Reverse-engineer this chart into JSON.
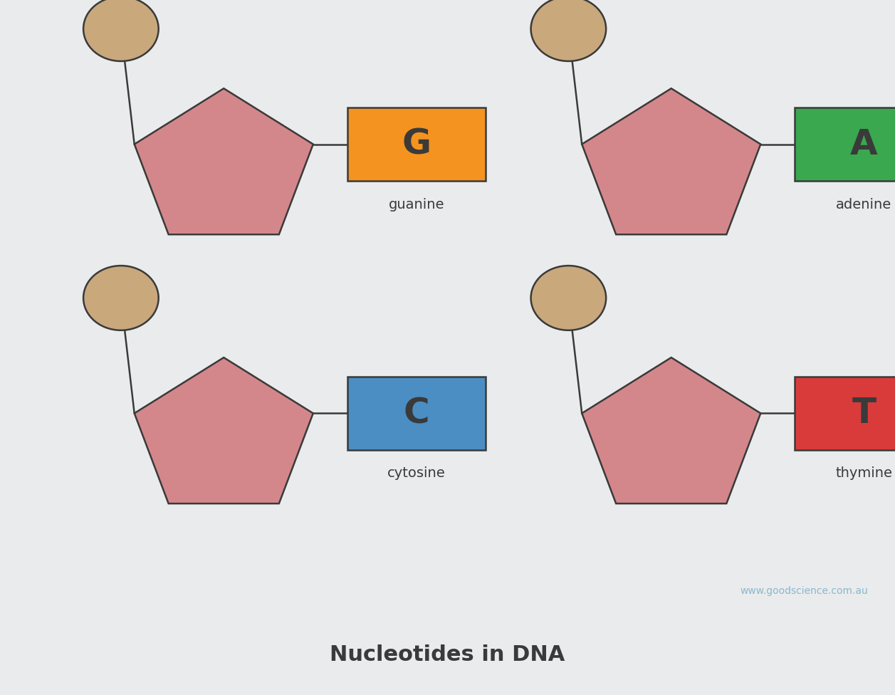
{
  "title": "Nucleotides in DNA",
  "watermark": "www.goodscience.com.au",
  "background_color": "#eaebec",
  "title_bar_color": "#d2d3d5",
  "pentagon_color": "#d4878b",
  "pentagon_edge_color": "#3a3a3a",
  "circle_color": "#c9a87c",
  "circle_edge_color": "#3a3a3a",
  "nucleotides": [
    {
      "label": "G",
      "name": "guanine",
      "box_color": "#f49320",
      "text_color": "#3a3a3a",
      "grid_col": 0,
      "grid_row": 0
    },
    {
      "label": "A",
      "name": "adenine",
      "box_color": "#39a84e",
      "text_color": "#3a3a3a",
      "grid_col": 1,
      "grid_row": 0
    },
    {
      "label": "C",
      "name": "cytosine",
      "box_color": "#4a8ec4",
      "text_color": "#3a3a3a",
      "grid_col": 0,
      "grid_row": 1
    },
    {
      "label": "T",
      "name": "thymine",
      "box_color": "#d93b3b",
      "text_color": "#3a3a3a",
      "grid_col": 1,
      "grid_row": 1
    }
  ],
  "fig_width": 12.57,
  "fig_height": 9.76,
  "dpi": 100
}
